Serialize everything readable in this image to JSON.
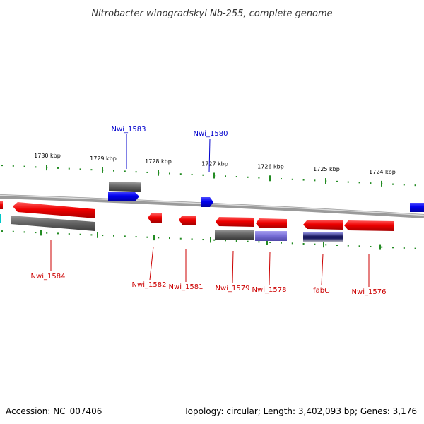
{
  "title": "Nitrobacter winogradskyi Nb-255, complete genome",
  "footer": {
    "accession": "Accession: NC_007406",
    "summary": "Topology: circular; Length: 3,402,093 bp; Genes: 3,176"
  },
  "colors": {
    "forward_label": "#0000cc",
    "reverse_label": "#cc0000",
    "backbone": "#888888",
    "tick": "#228B22"
  },
  "ticks": [
    {
      "label": "1730 kbp"
    },
    {
      "label": "1729 kbp"
    },
    {
      "label": "1728 kbp"
    },
    {
      "label": "1727 kbp"
    },
    {
      "label": "1726 kbp"
    },
    {
      "label": "1725 kbp"
    },
    {
      "label": "1724 kbp"
    }
  ],
  "labels": [
    {
      "name": "Nwi_1583",
      "strand": "forward"
    },
    {
      "name": "Nwi_1580",
      "strand": "forward"
    },
    {
      "name": "Nwi_1584",
      "strand": "reverse"
    },
    {
      "name": "Nwi_1582",
      "strand": "reverse"
    },
    {
      "name": "Nwi_1581",
      "strand": "reverse"
    },
    {
      "name": "Nwi_1579",
      "strand": "reverse"
    },
    {
      "name": "Nwi_1578",
      "strand": "reverse"
    },
    {
      "name": "fabG",
      "strand": "reverse"
    },
    {
      "name": "Nwi_1576",
      "strand": "reverse"
    }
  ]
}
